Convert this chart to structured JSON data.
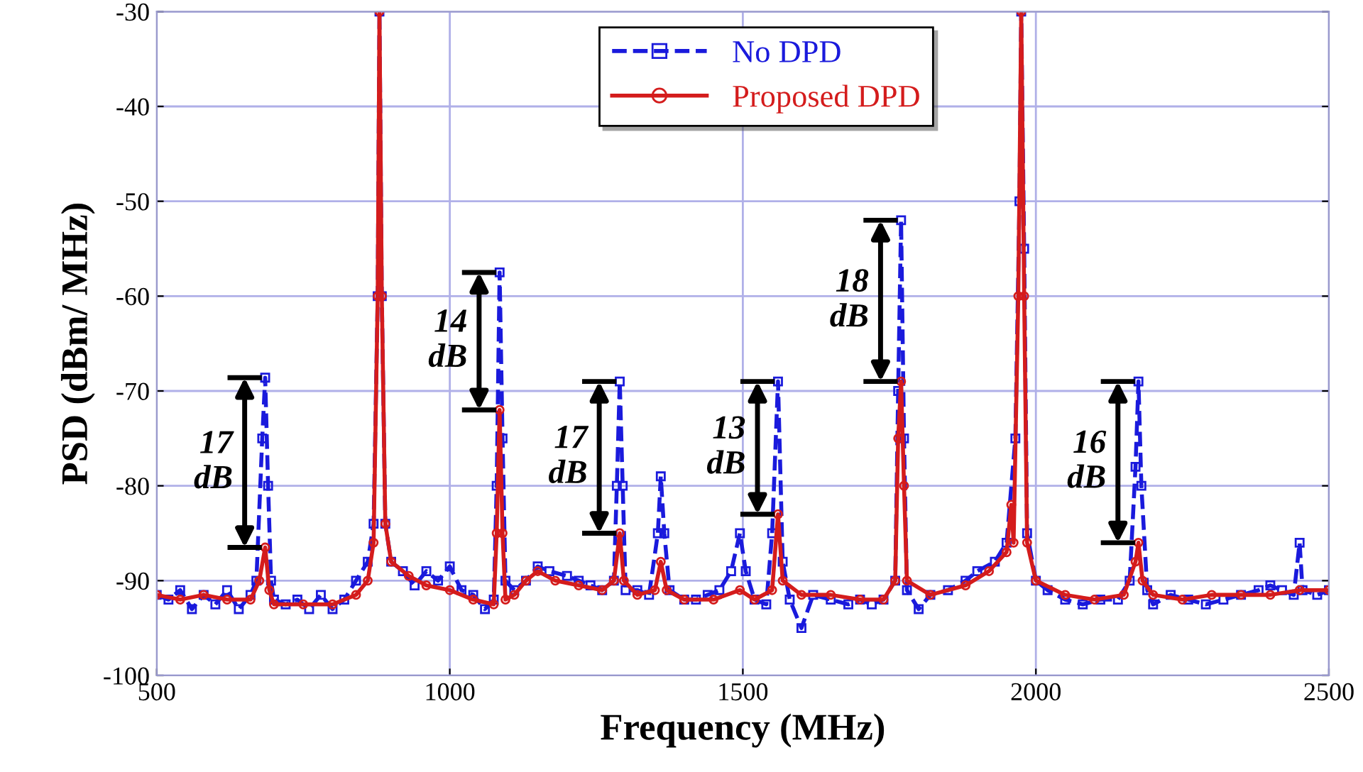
{
  "chart_data": {
    "type": "line",
    "xlabel": "Frequency (MHz)",
    "ylabel": "PSD (dBm/ MHz)",
    "xlim": [
      500,
      2500
    ],
    "xticks": [
      500,
      1000,
      1500,
      2000,
      2500
    ],
    "ylim": [
      -100,
      -30
    ],
    "yticks": [
      -100,
      -90,
      -80,
      -70,
      -60,
      -50,
      -40,
      -30
    ],
    "grid": true,
    "legend": "top",
    "series": [
      {
        "name": "No DPD",
        "color": "#1a1adc",
        "line_style": "dashed",
        "marker": "square",
        "x": [
          500,
          520,
          540,
          560,
          580,
          600,
          620,
          640,
          660,
          670,
          680,
          685,
          690,
          695,
          700,
          720,
          740,
          760,
          780,
          800,
          820,
          840,
          860,
          870,
          877,
          880,
          884,
          890,
          900,
          920,
          940,
          960,
          980,
          1000,
          1020,
          1040,
          1060,
          1075,
          1080,
          1085,
          1090,
          1095,
          1110,
          1130,
          1150,
          1170,
          1200,
          1220,
          1240,
          1260,
          1280,
          1285,
          1290,
          1295,
          1300,
          1320,
          1340,
          1355,
          1360,
          1366,
          1375,
          1400,
          1420,
          1440,
          1460,
          1480,
          1495,
          1505,
          1520,
          1540,
          1550,
          1560,
          1568,
          1580,
          1600,
          1620,
          1650,
          1680,
          1700,
          1720,
          1740,
          1760,
          1765,
          1770,
          1775,
          1780,
          1800,
          1820,
          1850,
          1880,
          1900,
          1930,
          1950,
          1965,
          1972,
          1975,
          1980,
          1985,
          2000,
          2020,
          2050,
          2080,
          2110,
          2140,
          2160,
          2170,
          2175,
          2180,
          2190,
          2200,
          2230,
          2260,
          2290,
          2320,
          2350,
          2380,
          2400,
          2420,
          2440,
          2450,
          2455,
          2480,
          2500
        ],
        "values": [
          -91.5,
          -92,
          -91,
          -93,
          -91.5,
          -92.5,
          -91,
          -93,
          -91.5,
          -90,
          -75,
          -68.6,
          -80,
          -90,
          -92,
          -92.5,
          -92,
          -93,
          -91.5,
          -93,
          -92,
          -90,
          -88,
          -84,
          -60,
          -30,
          -60,
          -84,
          -88,
          -89,
          -90.5,
          -89,
          -90,
          -88.5,
          -91,
          -91.5,
          -93,
          -92,
          -80,
          -57.5,
          -75,
          -90,
          -91,
          -90,
          -88.5,
          -89,
          -89.5,
          -90,
          -90.5,
          -91,
          -90,
          -80,
          -69,
          -80,
          -91,
          -91,
          -91.5,
          -85,
          -79,
          -85,
          -91,
          -92,
          -92,
          -91.5,
          -91,
          -89,
          -85,
          -89,
          -92,
          -92.5,
          -85,
          -69,
          -88,
          -92,
          -95,
          -91.5,
          -92,
          -92.5,
          -92,
          -92.5,
          -92,
          -90,
          -70,
          -52,
          -75,
          -91,
          -93,
          -91.5,
          -91,
          -90,
          -89,
          -88,
          -86,
          -75,
          -50,
          -30,
          -55,
          -85,
          -90,
          -91,
          -92,
          -92.5,
          -92,
          -92,
          -90,
          -78,
          -69,
          -80,
          -91,
          -92.5,
          -91.5,
          -92,
          -92.5,
          -92,
          -91.5,
          -91,
          -90.5,
          -91,
          -91.5,
          -86,
          -91,
          -91.5,
          -91
        ]
      },
      {
        "name": "Proposed DPD",
        "color": "#d41c1c",
        "line_style": "solid",
        "marker": "circle",
        "x": [
          500,
          540,
          580,
          620,
          660,
          675,
          685,
          692,
          700,
          750,
          800,
          840,
          860,
          870,
          877,
          880,
          884,
          890,
          900,
          930,
          960,
          1000,
          1040,
          1075,
          1080,
          1085,
          1090,
          1095,
          1110,
          1130,
          1150,
          1180,
          1220,
          1260,
          1280,
          1290,
          1297,
          1320,
          1350,
          1360,
          1370,
          1400,
          1450,
          1495,
          1520,
          1550,
          1560,
          1568,
          1600,
          1650,
          1700,
          1740,
          1760,
          1765,
          1770,
          1775,
          1780,
          1820,
          1880,
          1920,
          1950,
          1958,
          1962,
          1970,
          1975,
          1980,
          1985,
          2000,
          2050,
          2100,
          2150,
          2170,
          2175,
          2182,
          2200,
          2250,
          2300,
          2350,
          2400,
          2450,
          2500
        ],
        "values": [
          -91.5,
          -92,
          -91.5,
          -92,
          -92,
          -90,
          -86.5,
          -91,
          -92.5,
          -92.5,
          -92.5,
          -91.5,
          -90,
          -86,
          -60,
          -30,
          -60,
          -84,
          -88,
          -89.5,
          -90.5,
          -91,
          -92,
          -92.5,
          -85,
          -72,
          -85,
          -92,
          -91.5,
          -90,
          -89,
          -90,
          -90.5,
          -91,
          -90,
          -85,
          -90,
          -91.5,
          -91,
          -88,
          -91,
          -92,
          -92,
          -91,
          -92,
          -91,
          -83,
          -90,
          -91.5,
          -91.5,
          -92,
          -92,
          -90,
          -75,
          -69,
          -80,
          -90,
          -91.5,
          -90.5,
          -89,
          -87,
          -82,
          -86,
          -60,
          -30,
          -60,
          -86,
          -90,
          -91.5,
          -92,
          -91.5,
          -88,
          -86,
          -90,
          -91.5,
          -92,
          -91.5,
          -91.5,
          -91.5,
          -91,
          -91
        ]
      }
    ],
    "annotations": [
      {
        "text": "17\ndB",
        "x": 685,
        "y": -68.6
      },
      {
        "text": "14\ndB",
        "x": 1085,
        "y": -57.5
      },
      {
        "text": "17\ndB",
        "x": 1290,
        "y": -69
      },
      {
        "text": "13\ndB",
        "x": 1560,
        "y": -69
      },
      {
        "text": "18\ndB",
        "x": 1770,
        "y": -52
      },
      {
        "text": "16\ndB",
        "x": 2175,
        "y": -69
      }
    ]
  }
}
